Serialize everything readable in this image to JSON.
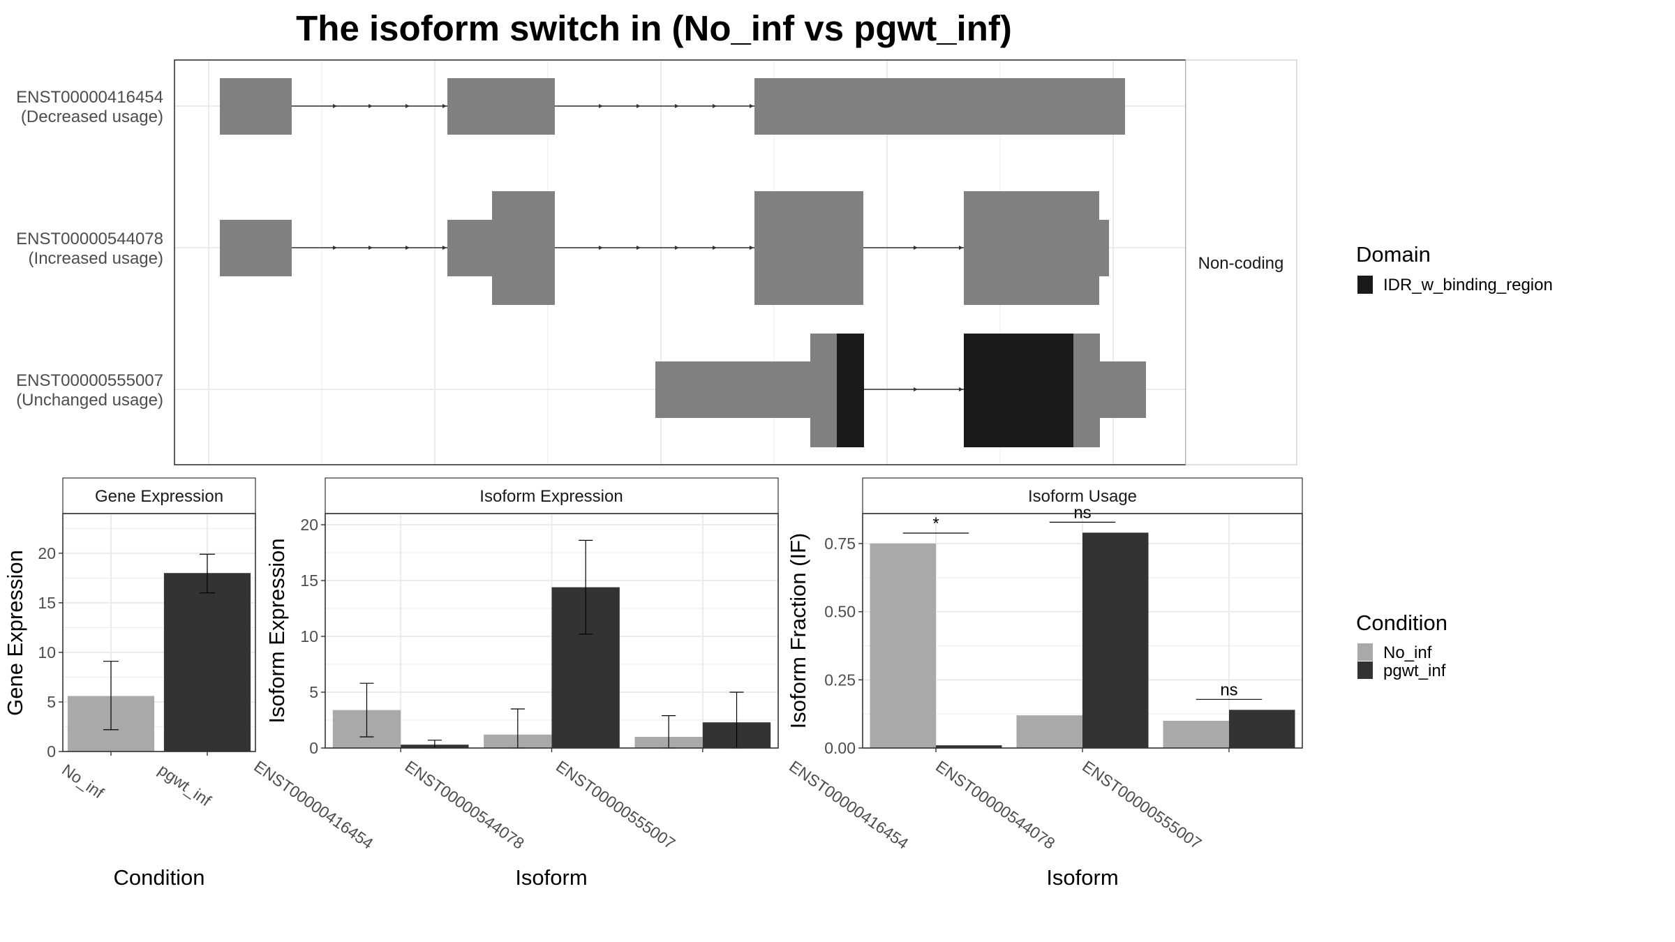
{
  "title": "The isoform switch in  (No_inf vs pgwt_inf)",
  "colors": {
    "exon": "#808080",
    "domain": "#1a1a1a",
    "no_inf": "#a9a9a9",
    "pgwt_inf": "#333333",
    "grid": "#ebebeb",
    "frame": "#333333"
  },
  "chart_data": [
    {
      "type": "gene-structure",
      "facet_label": "Non-coding",
      "transcripts": [
        {
          "id": "ENST00000416454",
          "status": "(Decreased usage)"
        },
        {
          "id": "ENST00000544078",
          "status": "(Increased usage)"
        },
        {
          "id": "ENST00000555007",
          "status": "(Unchanged usage)"
        }
      ],
      "domain_legend": {
        "title": "Domain",
        "entries": [
          {
            "label": "IDR_w_binding_region",
            "color": "#1a1a1a"
          }
        ]
      }
    },
    {
      "type": "bar",
      "strip": "Gene Expression",
      "xlabel": "Condition",
      "ylabel": "Gene Expression",
      "ylim": [
        0,
        24
      ],
      "yticks": [
        0,
        5,
        10,
        15,
        20
      ],
      "categories": [
        "No_inf",
        "pgwt_inf"
      ],
      "values": [
        5.6,
        18.0
      ],
      "errors": [
        [
          2.2,
          9.1
        ],
        [
          16.0,
          19.9
        ]
      ]
    },
    {
      "type": "bar",
      "strip": "Isoform Expression",
      "xlabel": "Isoform",
      "ylabel": "Isoform Expression",
      "ylim": [
        0,
        21
      ],
      "yticks": [
        0,
        5,
        10,
        15,
        20
      ],
      "categories": [
        "ENST00000416454",
        "ENST00000544078",
        "ENST00000555007"
      ],
      "series": [
        {
          "name": "No_inf",
          "values": [
            3.4,
            1.2,
            1.0
          ],
          "errors": [
            [
              1.0,
              5.8
            ],
            [
              0.0,
              3.5
            ],
            [
              0.0,
              2.9
            ]
          ]
        },
        {
          "name": "pgwt_inf",
          "values": [
            0.3,
            14.4,
            2.3
          ],
          "errors": [
            [
              0.0,
              0.7
            ],
            [
              10.2,
              18.6
            ],
            [
              0.0,
              5.0
            ]
          ]
        }
      ]
    },
    {
      "type": "bar",
      "strip": "Isoform Usage",
      "xlabel": "Isoform",
      "ylabel": "Isoform Fraction (IF)",
      "ylim": [
        0,
        0.86
      ],
      "yticks": [
        "0.00",
        "0.25",
        "0.50",
        "0.75"
      ],
      "categories": [
        "ENST00000416454",
        "ENST00000544078",
        "ENST00000555007"
      ],
      "series": [
        {
          "name": "No_inf",
          "values": [
            0.75,
            0.12,
            0.1
          ]
        },
        {
          "name": "pgwt_inf",
          "values": [
            0.01,
            0.79,
            0.14
          ]
        }
      ],
      "significance": [
        "*",
        "ns",
        "ns"
      ],
      "condition_legend": {
        "title": "Condition",
        "entries": [
          {
            "label": "No_inf",
            "color": "#a9a9a9"
          },
          {
            "label": "pgwt_inf",
            "color": "#333333"
          }
        ]
      }
    }
  ]
}
